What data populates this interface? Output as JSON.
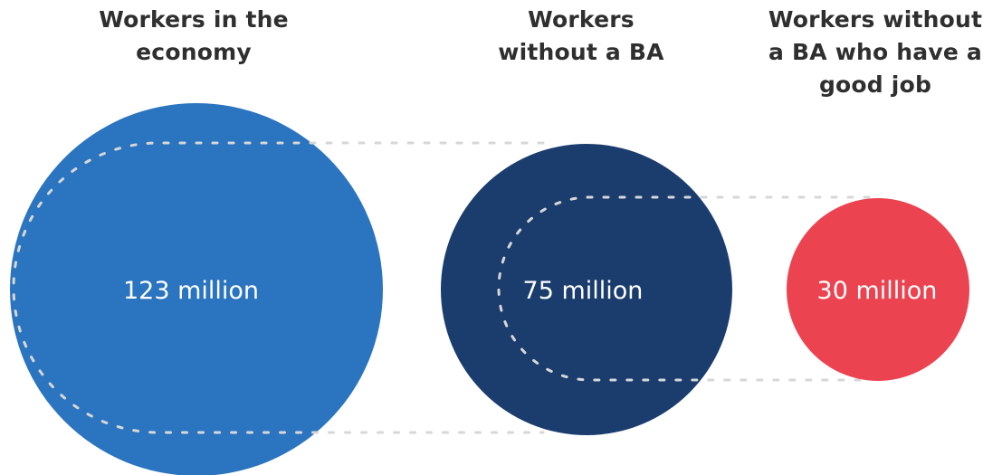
{
  "headings": [
    {
      "lines": [
        "Workers in the",
        "economy"
      ]
    },
    {
      "lines": [
        "Workers",
        "without a BA"
      ]
    },
    {
      "lines": [
        "Workers without",
        "a BA who have a",
        "good job"
      ]
    }
  ],
  "bubbles": [
    {
      "label": "123 million",
      "value_millions": 123,
      "color": "#2b74bf"
    },
    {
      "label": "75 million",
      "value_millions": 75,
      "color": "#1b3d6e"
    },
    {
      "label": "30 million",
      "value_millions": 30,
      "color": "#ec4351"
    }
  ],
  "connector_color": "#d7d7d7"
}
